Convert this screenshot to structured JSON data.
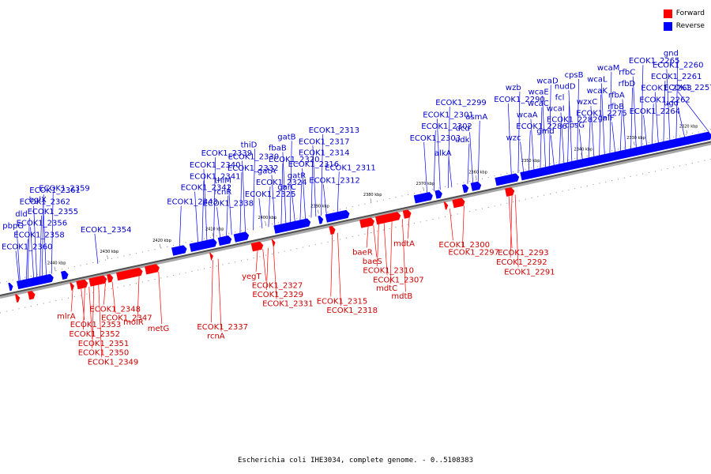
{
  "caption": "Escherichia coli IHE3034, complete genome. - 0..5108383",
  "legend": {
    "forward": {
      "label": "Forward",
      "color": "#ff0000"
    },
    "reverse": {
      "label": "Reverse",
      "color": "#0000ff"
    }
  },
  "scale_ticks": [
    {
      "label": "2440 kbp",
      "pos": 2440
    },
    {
      "label": "2430 kbp",
      "pos": 2430
    },
    {
      "label": "2420 kbp",
      "pos": 2420
    },
    {
      "label": "2410 kbp",
      "pos": 2410
    },
    {
      "label": "2400 kbp",
      "pos": 2400
    },
    {
      "label": "2390 kbp",
      "pos": 2390
    },
    {
      "label": "2380 kbp",
      "pos": 2380
    },
    {
      "label": "2370 kbp",
      "pos": 2370
    },
    {
      "label": "2360 kbp",
      "pos": 2360
    },
    {
      "label": "2350 kbp",
      "pos": 2350
    },
    {
      "label": "2340 kbp",
      "pos": 2340
    },
    {
      "label": "2330 kbp",
      "pos": 2330
    },
    {
      "label": "2320 kbp",
      "pos": 2320
    }
  ],
  "reverse_genes": [
    {
      "label": "ECOK1_2360",
      "pos": 2447.0
    },
    {
      "label": "ECOK1_2358",
      "pos": 2445.6
    },
    {
      "label": "ECOK1_2356",
      "pos": 2444.2
    },
    {
      "label": "ECOK1_2355",
      "pos": 2443.0
    },
    {
      "label": "bglX",
      "pos": 2441.8
    },
    {
      "label": "ECOK1_2359",
      "pos": 2440.8
    },
    {
      "label": "ECOK1_2354",
      "pos": 2432.0
    },
    {
      "label": "ECOK1_2343",
      "pos": 2416.5
    },
    {
      "label": "ECOK1_2342",
      "pos": 2413.0
    },
    {
      "label": "ECOK1_2341",
      "pos": 2412.2
    },
    {
      "label": "ECOK1_2340",
      "pos": 2411.3
    },
    {
      "label": "ECOK1_2339",
      "pos": 2410.0
    },
    {
      "label": "ECOK1_2338",
      "pos": 2408.8
    },
    {
      "label": "rcnR",
      "pos": 2407.6
    },
    {
      "label": "thiM",
      "pos": 2406.6
    },
    {
      "label": "ECOK1_2332",
      "pos": 2405.0
    },
    {
      "label": "ECOK1_2330",
      "pos": 2404.0
    },
    {
      "label": "thiD",
      "pos": 2402.5
    },
    {
      "label": "ECOK1_2325",
      "pos": 2400.8
    },
    {
      "label": "ECOK1_2324",
      "pos": 2399.6
    },
    {
      "label": "gatA",
      "pos": 2398.4
    },
    {
      "label": "ECOK1_2320",
      "pos": 2397.2
    },
    {
      "label": "fbaB",
      "pos": 2396.3
    },
    {
      "label": "gatB",
      "pos": 2395.5
    },
    {
      "label": "garC",
      "pos": 2394.6
    },
    {
      "label": "gatR",
      "pos": 2393.6
    },
    {
      "label": "ECOK1_2316",
      "pos": 2392.6
    },
    {
      "label": "ECOK1_2314",
      "pos": 2391.5
    },
    {
      "label": "ECOK1_2317",
      "pos": 2390.6
    },
    {
      "label": "ECOK1_2313",
      "pos": 2389.6
    },
    {
      "label": "ECOK1_2312",
      "pos": 2388.6
    },
    {
      "label": "ECOK1_2311",
      "pos": 2386.5
    },
    {
      "label": "ECOK1_2303",
      "pos": 2369.5
    },
    {
      "label": "ECOK1_2302",
      "pos": 2368.2
    },
    {
      "label": "ECOK1_2301",
      "pos": 2367.0
    },
    {
      "label": "ECOK1_2299",
      "pos": 2365.5
    },
    {
      "label": "alkA",
      "pos": 2364.8
    },
    {
      "label": "udk",
      "pos": 2361.8
    },
    {
      "label": "dcd",
      "pos": 2360.8
    },
    {
      "label": "asmA",
      "pos": 2359.8
    },
    {
      "label": "ECOK1_2290",
      "pos": 2353.5
    },
    {
      "label": "wzb",
      "pos": 2352.2
    },
    {
      "label": "wzc",
      "pos": 2351.2
    },
    {
      "label": "ECOK1_2286",
      "pos": 2350.2
    },
    {
      "label": "wcaA",
      "pos": 2349.2
    },
    {
      "label": "wcaC",
      "pos": 2348.0
    },
    {
      "label": "wcaE",
      "pos": 2347.0
    },
    {
      "label": "wcaD",
      "pos": 2346.3
    },
    {
      "label": "gmd",
      "pos": 2345.4
    },
    {
      "label": "ECOK1_2282",
      "pos": 2344.4
    },
    {
      "label": "wcaI",
      "pos": 2343.5
    },
    {
      "label": "fcl",
      "pos": 2342.8
    },
    {
      "label": "nudD",
      "pos": 2342.0
    },
    {
      "label": "cpsB",
      "pos": 2341.0
    },
    {
      "label": "cpsG",
      "pos": 2340.0
    },
    {
      "label": "ECOK1_2275",
      "pos": 2338.8
    },
    {
      "label": "wzxC",
      "pos": 2337.8
    },
    {
      "label": "wcaK",
      "pos": 2336.8
    },
    {
      "label": "wcaL",
      "pos": 2335.8
    },
    {
      "label": "wcaM",
      "pos": 2334.8
    },
    {
      "label": "galF",
      "pos": 2333.8
    },
    {
      "label": "rfbB",
      "pos": 2332.8
    },
    {
      "label": "rfbA",
      "pos": 2331.8
    },
    {
      "label": "rfbD",
      "pos": 2330.8
    },
    {
      "label": "rfbC",
      "pos": 2329.8
    },
    {
      "label": "ECOK1_2265",
      "pos": 2328.8
    },
    {
      "label": "ECOK1_2264",
      "pos": 2327.8
    },
    {
      "label": "ECOK1_2262",
      "pos": 2326.8
    },
    {
      "label": "ECOK1_2263",
      "pos": 2325.6
    },
    {
      "label": "ECOK1_2261",
      "pos": 2324.6
    },
    {
      "label": "ECOK1_2260",
      "pos": 2323.4
    },
    {
      "label": "gnd",
      "pos": 2322.2
    },
    {
      "label": "ugd",
      "pos": 2320.6
    },
    {
      "label": "ECOK1_2257",
      "pos": 2316.0
    },
    {
      "label": "pbpG",
      "pos": 2446.8
    },
    {
      "label": "dld",
      "pos": 2445.3
    },
    {
      "label": "ECOK1_2362",
      "pos": 2443.6
    },
    {
      "label": "ECOK1_2361",
      "pos": 2442.6
    }
  ],
  "forward_genes": [
    {
      "label": "mlrA",
      "pos": 2437.6
    },
    {
      "label": "ECOK1_2353",
      "pos": 2436.0
    },
    {
      "label": "ECOK1_2352",
      "pos": 2435.3
    },
    {
      "label": "ECOK1_2351",
      "pos": 2434.5
    },
    {
      "label": "ECOK1_2350",
      "pos": 2433.6
    },
    {
      "label": "ECOK1_2349",
      "pos": 2432.7
    },
    {
      "label": "ECOK1_2348",
      "pos": 2431.4
    },
    {
      "label": "ECOK1_2347",
      "pos": 2430.1
    },
    {
      "label": "molR",
      "pos": 2425.0
    },
    {
      "label": "metG",
      "pos": 2421.3
    },
    {
      "label": "ECOK1_2337",
      "pos": 2411.0
    },
    {
      "label": "rcnA",
      "pos": 2410.0
    },
    {
      "label": "yegT",
      "pos": 2402.5
    },
    {
      "label": "ECOK1_2327",
      "pos": 2401.5
    },
    {
      "label": "ECOK1_2329",
      "pos": 2400.5
    },
    {
      "label": "ECOK1_2331",
      "pos": 2399.5
    },
    {
      "label": "ECOK1_2315",
      "pos": 2388.3
    },
    {
      "label": "ECOK1_2318",
      "pos": 2387.3
    },
    {
      "label": "baeR",
      "pos": 2381.5
    },
    {
      "label": "baeS",
      "pos": 2380.5
    },
    {
      "label": "ECOK1_2310",
      "pos": 2379.5
    },
    {
      "label": "ECOK1_2307",
      "pos": 2378.5
    },
    {
      "label": "mdtC",
      "pos": 2377.0
    },
    {
      "label": "mdtB",
      "pos": 2375.0
    },
    {
      "label": "mdtA",
      "pos": 2373.7
    },
    {
      "label": "ECOK1_2300",
      "pos": 2366.0
    },
    {
      "label": "ECOK1_2297",
      "pos": 2363.3
    },
    {
      "label": "ECOK1_2293",
      "pos": 2354.8
    },
    {
      "label": "ECOK1_2292",
      "pos": 2354.2
    },
    {
      "label": "ECOK1_2291",
      "pos": 2353.6
    }
  ],
  "forward_blocks": [
    [
      2448.2,
      2447.5
    ],
    [
      2445.8,
      2444.6
    ],
    [
      2437.8,
      2437.2
    ],
    [
      2436.6,
      2434.6
    ],
    [
      2434.2,
      2431.0
    ],
    [
      2430.8,
      2429.8
    ],
    [
      2429.0,
      2424.2
    ],
    [
      2423.6,
      2421.0
    ],
    [
      2411.3,
      2410.8
    ],
    [
      2403.4,
      2401.3
    ],
    [
      2399.5,
      2399.0
    ],
    [
      2388.6,
      2387.6
    ],
    [
      2382.8,
      2380.2
    ],
    [
      2379.8,
      2375.2
    ],
    [
      2374.6,
      2373.2
    ],
    [
      2366.8,
      2366.2
    ],
    [
      2365.2,
      2363.0
    ],
    [
      2355.2,
      2353.6
    ]
  ],
  "reverse_blocks": [
    [
      2449.0,
      2448.3
    ],
    [
      2447.4,
      2440.6
    ],
    [
      2439.0,
      2437.8
    ],
    [
      2418.0,
      2415.3
    ],
    [
      2414.6,
      2409.6
    ],
    [
      2409.2,
      2406.8
    ],
    [
      2406.2,
      2403.5
    ],
    [
      2398.6,
      2391.8
    ],
    [
      2390.2,
      2389.4
    ],
    [
      2388.8,
      2384.4
    ],
    [
      2372.0,
      2368.6
    ],
    [
      2368.0,
      2366.8
    ],
    [
      2362.8,
      2361.8
    ],
    [
      2361.2,
      2359.4
    ],
    [
      2356.6,
      2352.2
    ],
    [
      2351.8,
      2315.6
    ]
  ]
}
